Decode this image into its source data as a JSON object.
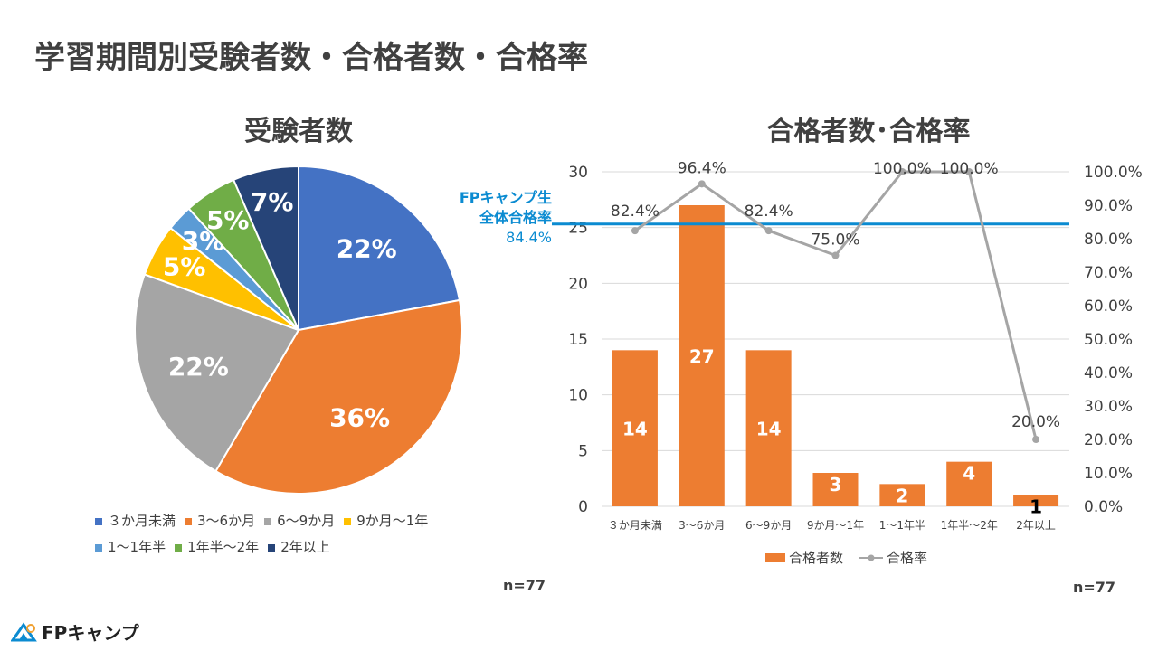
{
  "title": "学習期間別受験者数・合格者数・合格率",
  "logo_text": "FPキャンプ",
  "chart_data": [
    {
      "type": "pie",
      "title": "受験者数",
      "categories": [
        "３か月未満",
        "3～6か月",
        "6～9か月",
        "9か月～1年",
        "1～1年半",
        "1年半～2年",
        "2年以上"
      ],
      "values": [
        17,
        28,
        17,
        4,
        2,
        4,
        5
      ],
      "labels": [
        "22%",
        "36%",
        "22%",
        "5%",
        "3%",
        "5%",
        "7%"
      ],
      "colors": [
        "#4472c4",
        "#ed7d31",
        "#a5a5a5",
        "#ffc000",
        "#5b9bd5",
        "#70ad47",
        "#264478"
      ],
      "note": "n=77",
      "legend": "bottom"
    },
    {
      "type": "bar",
      "title": "合格者数･合格率",
      "categories": [
        "３か月未満",
        "3～6か月",
        "6～9か月",
        "9か月～1年",
        "1～1年半",
        "1年半～2年",
        "2年以上"
      ],
      "series": [
        {
          "name": "合格者数",
          "type": "bar",
          "axis": "left",
          "values": [
            14,
            27,
            14,
            3,
            2,
            4,
            1
          ],
          "labels": [
            "14",
            "27",
            "14",
            "3",
            "2",
            "4",
            "1"
          ],
          "color": "#ed7d31"
        },
        {
          "name": "合格率",
          "type": "line",
          "axis": "right",
          "values": [
            82.4,
            96.4,
            82.4,
            75.0,
            100.0,
            100.0,
            20.0
          ],
          "labels": [
            "82.4%",
            "96.4%",
            "82.4%",
            "75.0%",
            "100.0%",
            "100.0%",
            "20.0%"
          ],
          "color": "#a5a5a5"
        }
      ],
      "ylim": [
        0,
        30
      ],
      "yticks": [
        "0",
        "5",
        "10",
        "15",
        "20",
        "25",
        "30"
      ],
      "y2lim": [
        0,
        100
      ],
      "y2ticks": [
        "0.0%",
        "10.0%",
        "20.0%",
        "30.0%",
        "40.0%",
        "50.0%",
        "60.0%",
        "70.0%",
        "80.0%",
        "90.0%",
        "100.0%"
      ],
      "reference_line": {
        "value": 84.4,
        "label_lines": [
          "FPキャンプ生",
          "全体合格率",
          "84.4%"
        ],
        "color": "#0b8bd1"
      },
      "note": "n=77",
      "legend": "bottom",
      "grid": true
    }
  ]
}
